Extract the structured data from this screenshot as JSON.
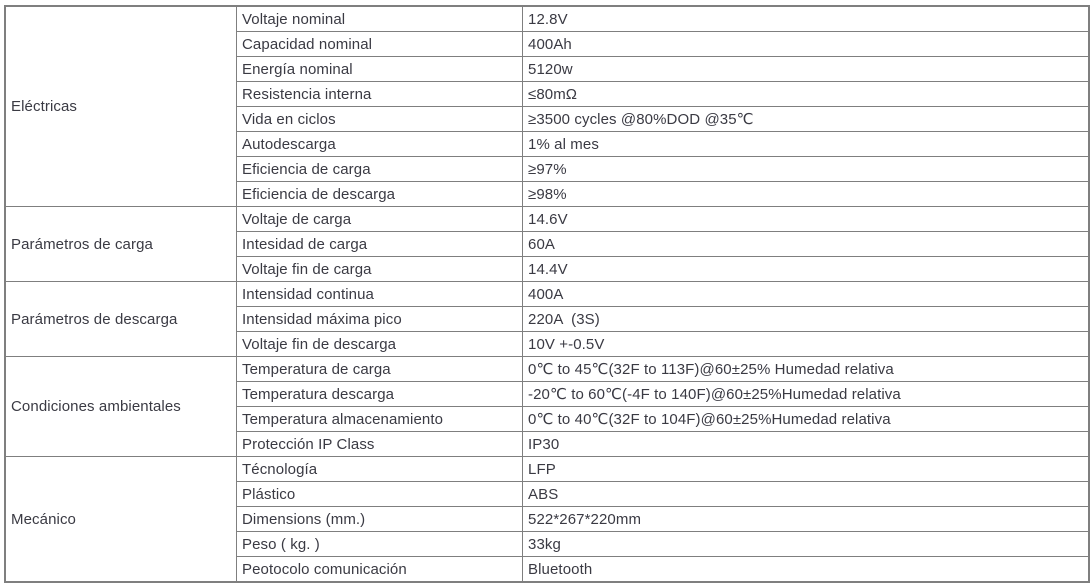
{
  "table": {
    "border_color": "#7f7f7f",
    "text_color": "#3a3a43",
    "groups": [
      {
        "category": "Eléctricas",
        "rows": [
          {
            "param": "Voltaje nominal",
            "value": "12.8V"
          },
          {
            "param": "Capacidad nominal",
            "value": "400Ah"
          },
          {
            "param": "Energía nominal",
            "value": "5120w"
          },
          {
            "param": "Resistencia interna",
            "value": "≤80mΩ"
          },
          {
            "param": "Vida en ciclos",
            "value": "≥3500 cycles @80%DOD @35℃"
          },
          {
            "param": "Autodescarga",
            "value": "1% al mes"
          },
          {
            "param": "Eficiencia de carga",
            "value": "≥97%"
          },
          {
            "param": "Eficiencia de descarga",
            "value": "≥98%"
          }
        ]
      },
      {
        "category": "Parámetros de carga",
        "rows": [
          {
            "param": "Voltaje de carga",
            "value": "14.6V"
          },
          {
            "param": "Intesidad de carga",
            "value": "60A"
          },
          {
            "param": "Voltaje fin de carga",
            "value": "14.4V"
          }
        ]
      },
      {
        "category": "Parámetros de descarga",
        "rows": [
          {
            "param": "Intensidad continua",
            "value": "400A"
          },
          {
            "param": "Intensidad máxima pico",
            "value": "220A  (3S)"
          },
          {
            "param": "Voltaje fin de descarga",
            "value": "10V +-0.5V"
          }
        ]
      },
      {
        "category": "Condiciones ambientales",
        "rows": [
          {
            "param": "Temperatura de carga",
            "value": "0℃ to 45℃(32F to 113F)@60±25% Humedad relativa"
          },
          {
            "param": "Temperatura descarga",
            "value": "-20℃ to 60℃(-4F to 140F)@60±25%Humedad relativa"
          },
          {
            "param": "Temperatura almacenamiento",
            "value": "0℃ to 40℃(32F to 104F)@60±25%Humedad relativa"
          },
          {
            "param": "Protección IP Class",
            "value": "IP30"
          }
        ]
      },
      {
        "category": "Mecánico",
        "rows": [
          {
            "param": "Técnología",
            "value": "LFP"
          },
          {
            "param": "Plástico",
            "value": "ABS"
          },
          {
            "param": "Dimensions (mm.)",
            "value": "522*267*220mm"
          },
          {
            "param": "Peso ( kg. )",
            "value": "33kg"
          },
          {
            "param": "Peotocolo comunicación",
            "value": "Bluetooth"
          }
        ]
      }
    ]
  }
}
